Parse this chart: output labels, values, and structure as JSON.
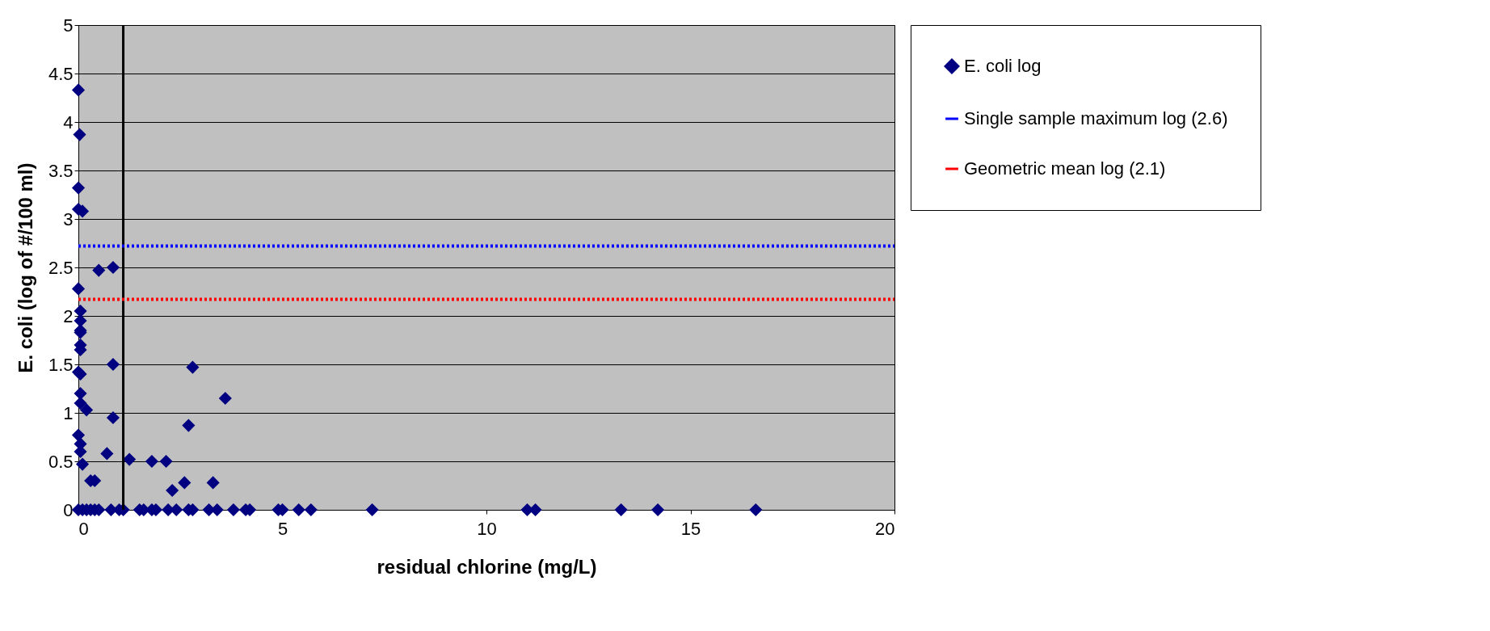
{
  "chart_data": {
    "type": "scatter",
    "xlabel": "residual chlorine (mg/L)",
    "ylabel": "E. coli (log of #/100 ml)",
    "xlim": [
      0,
      20
    ],
    "xticks": [
      0,
      5,
      10,
      15,
      20
    ],
    "ylim": [
      0,
      5
    ],
    "yticks": [
      0,
      0.5,
      1,
      1.5,
      2,
      2.5,
      3,
      3.5,
      4,
      4.5,
      5
    ],
    "grid": "y",
    "legend": "right",
    "ref_lines": [
      {
        "axis": "x",
        "value": 1.1,
        "color": "#000000"
      }
    ],
    "series": [
      {
        "name": "E. coli log",
        "color": "#000080",
        "marker": "diamond",
        "x": [
          0,
          0.03,
          0,
          0,
          0.1,
          0.5,
          0.85,
          0,
          0.05,
          0.05,
          0.05,
          0.05,
          0.05,
          0.05,
          0,
          0.05,
          0.85,
          2.8,
          3.6,
          0.05,
          0.05,
          0.2,
          0.85,
          2.7,
          0,
          0.05,
          0.05,
          0.7,
          1.25,
          1.8,
          2.15,
          0.1,
          0.3,
          0.4,
          2.3,
          2.6,
          3.3,
          0,
          0.1,
          0.2,
          0.3,
          0.4,
          0.5,
          0.8,
          1.0,
          1.1,
          1.5,
          1.6,
          1.8,
          1.9,
          2.2,
          2.4,
          2.7,
          2.8,
          3.2,
          3.4,
          3.8,
          4.1,
          4.2,
          4.9,
          5.0,
          5.4,
          5.7,
          7.2,
          11.0,
          11.2,
          13.3,
          14.2,
          16.6
        ],
        "values": [
          4.33,
          3.87,
          3.32,
          3.1,
          3.08,
          2.47,
          2.5,
          2.28,
          2.05,
          1.95,
          1.85,
          1.83,
          1.7,
          1.65,
          1.42,
          1.4,
          1.5,
          1.47,
          1.15,
          1.2,
          1.1,
          1.03,
          0.95,
          0.87,
          0.77,
          0.68,
          0.6,
          0.58,
          0.52,
          0.5,
          0.5,
          0.47,
          0.3,
          0.3,
          0.2,
          0.28,
          0.28,
          0,
          0,
          0,
          0,
          0,
          0,
          0,
          0,
          0,
          0,
          0,
          0,
          0,
          0,
          0,
          0,
          0,
          0,
          0,
          0,
          0,
          0,
          0,
          0,
          0,
          0,
          0,
          0,
          0,
          0,
          0,
          0
        ]
      },
      {
        "name": "Single sample maximum log (2.6)",
        "type": "line",
        "color": "#0000ff",
        "line_style": "dotted",
        "x": [
          0,
          20
        ],
        "values": [
          2.72,
          2.72
        ]
      },
      {
        "name": "Geometric mean log (2.1)",
        "type": "line",
        "color": "#ff0000",
        "line_style": "dotted",
        "x": [
          0,
          20
        ],
        "values": [
          2.17,
          2.17
        ]
      }
    ]
  }
}
